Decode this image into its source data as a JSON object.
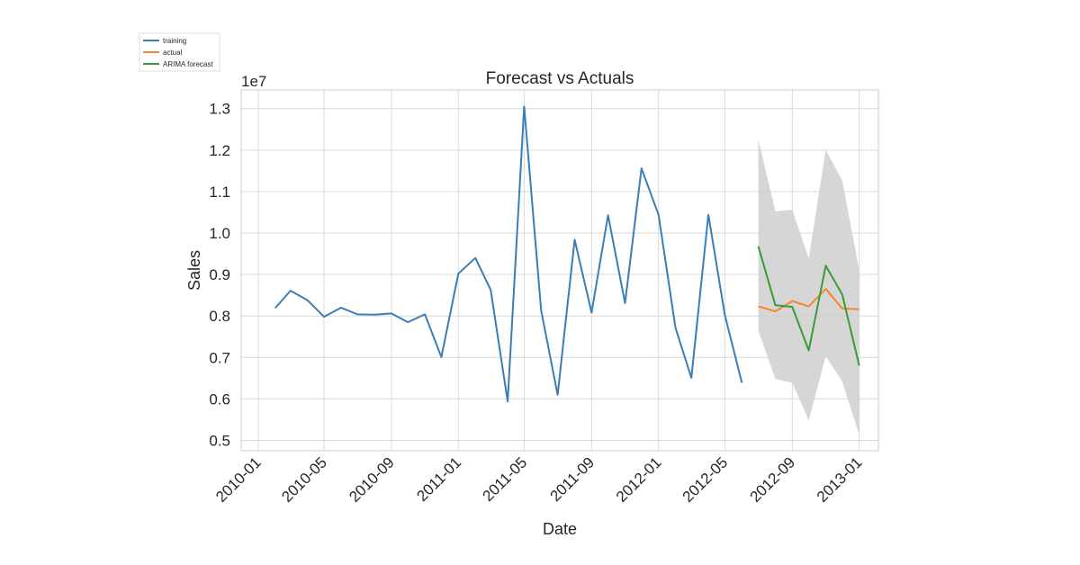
{
  "chart_data": {
    "type": "line",
    "title": "Forecast vs Actuals",
    "xlabel": "Date",
    "ylabel": "Sales",
    "y_scale_label": "1e7",
    "xlim": [
      "2009-12-01",
      "2013-02-05"
    ],
    "ylim": [
      4.75,
      13.45
    ],
    "y_ticks": [
      0.5,
      0.6,
      0.7,
      0.8,
      0.9,
      1.0,
      1.1,
      1.2,
      1.3
    ],
    "y_tick_labels": [
      "0.5",
      "0.6",
      "0.7",
      "0.8",
      "0.9",
      "1.0",
      "1.1",
      "1.2",
      "1.3"
    ],
    "x_ticks": [
      "2010-01-01",
      "2010-05-01",
      "2010-09-01",
      "2011-01-01",
      "2011-05-01",
      "2011-09-01",
      "2012-01-01",
      "2012-05-01",
      "2012-09-01",
      "2013-01-01"
    ],
    "x_tick_labels": [
      "2010-01",
      "2010-05",
      "2010-09",
      "2011-01",
      "2011-05",
      "2011-09",
      "2012-01",
      "2012-05",
      "2012-09",
      "2013-01"
    ],
    "grid": true,
    "legend_position": "top-left",
    "colors": {
      "training": "#3a7eb8",
      "actual": "#f5862c",
      "forecast": "#3a9a3a",
      "band": "#cfcfcf"
    },
    "series": [
      {
        "name": "training",
        "x": [
          "2010-02-01",
          "2010-03-01",
          "2010-04-01",
          "2010-05-01",
          "2010-06-01",
          "2010-07-01",
          "2010-08-01",
          "2010-09-01",
          "2010-10-01",
          "2010-11-01",
          "2010-12-01",
          "2011-01-01",
          "2011-02-01",
          "2011-03-01",
          "2011-04-01",
          "2011-05-01",
          "2011-06-01",
          "2011-07-01",
          "2011-08-01",
          "2011-09-01",
          "2011-10-01",
          "2011-11-01",
          "2011-12-01",
          "2012-01-01",
          "2012-02-01",
          "2012-03-01",
          "2012-04-01",
          "2012-05-01",
          "2012-06-01"
        ],
        "y": [
          8.19,
          8.61,
          8.38,
          7.98,
          8.2,
          8.04,
          8.03,
          8.06,
          7.85,
          8.04,
          7.01,
          9.02,
          9.4,
          8.63,
          5.94,
          13.05,
          8.13,
          6.1,
          9.84,
          8.08,
          10.43,
          8.31,
          11.56,
          10.44,
          7.71,
          6.51,
          10.44,
          8.02,
          6.39
        ]
      },
      {
        "name": "actual",
        "x": [
          "2012-07-01",
          "2012-08-01",
          "2012-09-01",
          "2012-10-01",
          "2012-11-01",
          "2012-12-01",
          "2013-01-01"
        ],
        "y": [
          8.23,
          8.11,
          8.36,
          8.23,
          8.65,
          8.18,
          8.16
        ]
      },
      {
        "name": "ARIMA forecast",
        "x": [
          "2012-07-01",
          "2012-08-01",
          "2012-09-01",
          "2012-10-01",
          "2012-11-01",
          "2012-12-01",
          "2013-01-01"
        ],
        "y": [
          9.68,
          8.26,
          8.22,
          7.17,
          9.21,
          8.52,
          6.8
        ]
      }
    ],
    "confidence_band": {
      "x": [
        "2012-07-01",
        "2012-08-01",
        "2012-09-01",
        "2012-10-01",
        "2012-11-01",
        "2012-12-01",
        "2013-01-01"
      ],
      "lower": [
        7.65,
        6.48,
        6.39,
        5.48,
        7.03,
        6.42,
        5.13
      ],
      "upper": [
        12.25,
        10.52,
        10.56,
        9.39,
        12.01,
        11.26,
        9.11
      ]
    }
  }
}
